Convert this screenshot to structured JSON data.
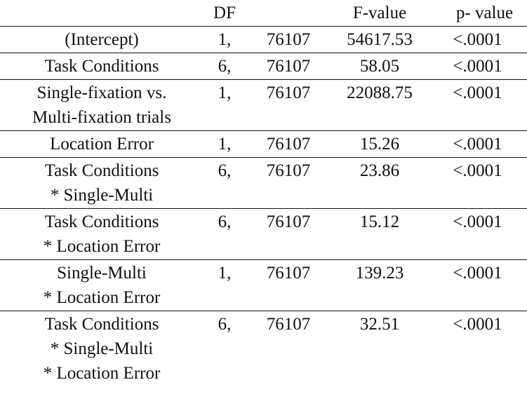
{
  "table": {
    "header": {
      "df": "DF",
      "f_value": "F-value",
      "p_value": "p- value"
    },
    "rows": [
      {
        "effect": [
          "(Intercept)"
        ],
        "df": "1,",
        "den_df": "76107",
        "f_value": "54617.53",
        "p_value": "<.0001"
      },
      {
        "effect": [
          "Task Conditions"
        ],
        "df": "6,",
        "den_df": "76107",
        "f_value": "58.05",
        "p_value": "<.0001"
      },
      {
        "effect": [
          "Single-fixation vs.",
          "Multi-fixation trials"
        ],
        "df": "1,",
        "den_df": "76107",
        "f_value": "22088.75",
        "p_value": "<.0001"
      },
      {
        "effect": [
          "Location Error"
        ],
        "df": "1,",
        "den_df": "76107",
        "f_value": "15.26",
        "p_value": "<.0001"
      },
      {
        "effect": [
          "Task Conditions",
          "* Single-Multi"
        ],
        "df": "6,",
        "den_df": "76107",
        "f_value": "23.86",
        "p_value": "<.0001"
      },
      {
        "effect": [
          "Task Conditions",
          "* Location Error"
        ],
        "df": "6,",
        "den_df": "76107",
        "f_value": "15.12",
        "p_value": "<.0001"
      },
      {
        "effect": [
          "Single-Multi",
          "* Location Error"
        ],
        "df": "1,",
        "den_df": "76107",
        "f_value": "139.23",
        "p_value": "<.0001"
      },
      {
        "effect": [
          "Task Conditions",
          "* Single-Multi",
          "* Location Error"
        ],
        "df": "6,",
        "den_df": "76107",
        "f_value": "32.51",
        "p_value": "<.0001"
      }
    ]
  }
}
